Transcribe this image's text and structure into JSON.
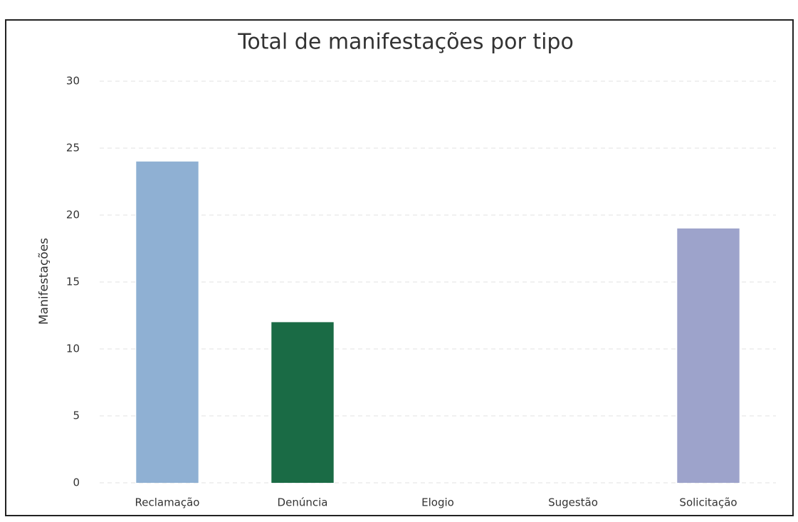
{
  "chart_data": {
    "type": "bar",
    "title": "Total de manifestações por tipo",
    "y_label": "Manifestações",
    "categories": [
      "Reclamação",
      "Denúncia",
      "Elogio",
      "Sugestão",
      "Solicitação"
    ],
    "values": [
      24,
      12,
      0,
      0,
      19
    ],
    "colors": [
      "#8fb0d3",
      "#1a6b45",
      "#c9c9c9",
      "#c9c9c9",
      "#9da3cb"
    ],
    "ylim": [
      0,
      30
    ],
    "yticks": [
      0,
      5,
      10,
      15,
      20,
      25,
      30
    ],
    "grid": true
  }
}
